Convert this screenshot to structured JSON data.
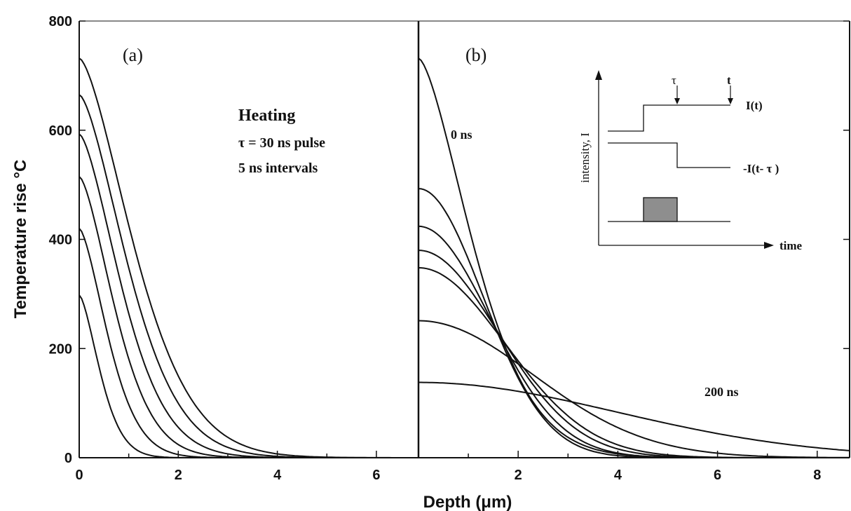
{
  "chart_data": [
    {
      "type": "line",
      "panel_label": "(a)",
      "xlim": [
        0,
        6.85
      ],
      "ylim": [
        0,
        800
      ],
      "x_ticks": [
        "0",
        "2",
        "4",
        "6"
      ],
      "y_ticks": [
        "0",
        "200",
        "400",
        "600",
        "800"
      ],
      "ylabel": "Temperature rise °C",
      "annotation": {
        "title": "Heating",
        "line1": "τ = 30 ns pulse",
        "line2": "5 ns intervals"
      },
      "series": [
        {
          "peak": 298,
          "decay_length": 0.42
        },
        {
          "peak": 420,
          "decay_length": 0.58
        },
        {
          "peak": 515,
          "decay_length": 0.72
        },
        {
          "peak": 593,
          "decay_length": 0.85
        },
        {
          "peak": 665,
          "decay_length": 0.98
        },
        {
          "peak": 732,
          "decay_length": 1.1
        }
      ]
    },
    {
      "type": "line",
      "panel_label": "(b)",
      "xlim": [
        0,
        8.65
      ],
      "ylim": [
        0,
        800
      ],
      "x_ticks": [
        "2",
        "4",
        "6",
        "8"
      ],
      "xlabel": "Depth (μm)",
      "annotations": {
        "start": "0 ns",
        "end": "200 ns"
      },
      "series": [
        {
          "peak": 732,
          "decay_length": 1.1
        },
        {
          "peak": 493,
          "decay_length": 1.45
        },
        {
          "peak": 424,
          "decay_length": 1.62
        },
        {
          "peak": 380,
          "decay_length": 1.8
        },
        {
          "peak": 348,
          "decay_length": 1.95
        },
        {
          "peak": 251,
          "decay_length": 2.6
        },
        {
          "peak": 138,
          "decay_length": 4.5
        }
      ],
      "inset": {
        "ylabel": "intensity, I",
        "xlabel": "time",
        "labels": {
          "tau": "τ",
          "t": "t",
          "on": "I(t)",
          "off": "-I(t- τ )"
        }
      }
    }
  ]
}
